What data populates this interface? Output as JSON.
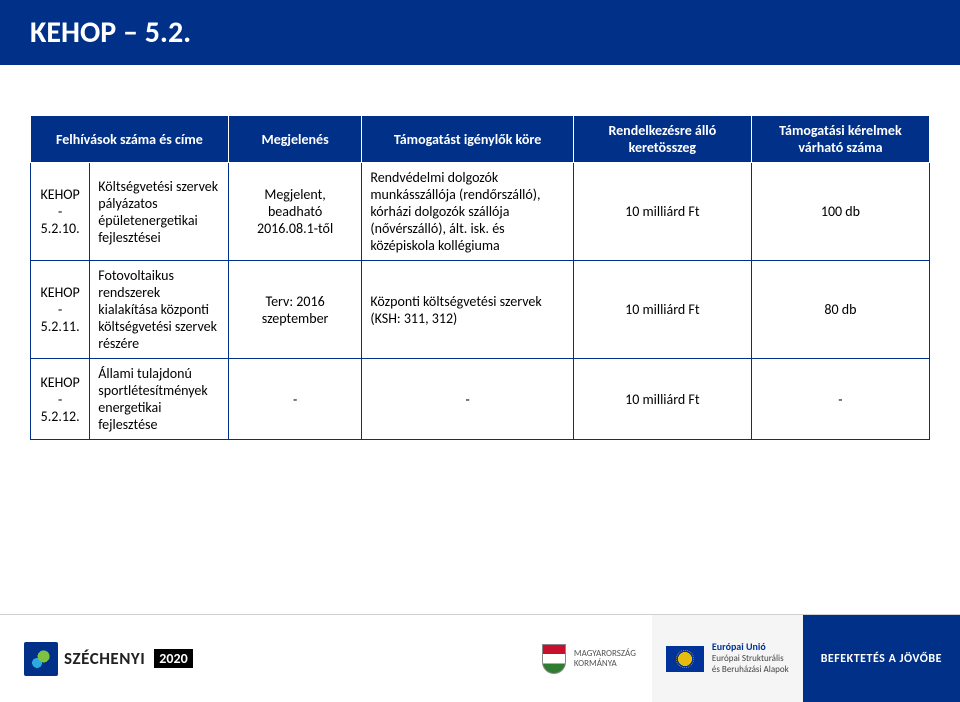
{
  "title": "KEHOP – 5.2.",
  "table": {
    "columns": [
      "Felhívások száma és címe",
      "Megjelenés",
      "Támogatást igénylők köre",
      "Rendelkezésre álló keretösszeg",
      "Támogatási kérelmek várható száma"
    ],
    "rows": [
      {
        "code": "KEHOP - 5.2.10.",
        "name": "Költségvetési szervek pályázatos épületenergetikai fejlesztései",
        "pub": "Megjelent, beadható 2016.08.1-től",
        "scope": "Rendvédelmi dolgozók munkásszállója (rendőrszálló), kórházi dolgozók szállója (nővérszálló), ált. isk. és középiskola kollégiuma",
        "budget": "10 milliárd Ft",
        "count": "100 db"
      },
      {
        "code": "KEHOP - 5.2.11.",
        "name": "Fotovoltaikus rendszerek kialakítása központi költségvetési szervek részére",
        "pub": "Terv: 2016 szeptember",
        "scope": "Központi költségvetési szervek (KSH: 311, 312)",
        "budget": "10 milliárd Ft",
        "count": "80 db"
      },
      {
        "code": "KEHOP - 5.2.12.",
        "name": "Állami tulajdonú sportlétesítmények energetikai fejlesztése",
        "pub": "-",
        "scope": "-",
        "budget": "10 milliárd Ft",
        "count": "-"
      }
    ]
  },
  "footer": {
    "szechenyi": "SZÉCHENYI",
    "sz2020": "2020",
    "crest_label": "MAGYARORSZÁG\nKORMÁNYA",
    "eu_title": "Európai Unió",
    "eu_line1": "Európai Strukturális",
    "eu_line2": "és Beruházási Alapok",
    "invest": "BEFEKTETÉS A JÖVŐBE"
  },
  "colors": {
    "brand_blue": "#003087",
    "white": "#ffffff",
    "text": "#000000"
  }
}
